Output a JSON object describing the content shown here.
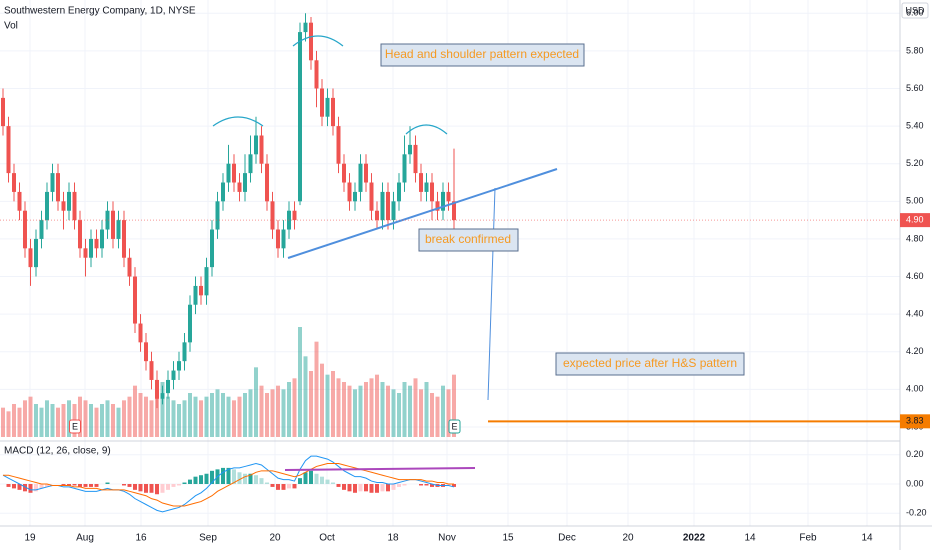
{
  "header": {
    "title": "Southwestern Energy Company, 1D, NYSE",
    "volume_label": "Vol",
    "currency": "USD"
  },
  "chart_data": {
    "type": "candlestick",
    "open": [
      5.55,
      5.4,
      5.15,
      5.05,
      4.95,
      4.75,
      4.65,
      4.8,
      4.9,
      5.05,
      5.15,
      5.0,
      4.95,
      5.05,
      4.9,
      4.75,
      4.7,
      4.8,
      4.75,
      4.85,
      4.95,
      4.8,
      4.9,
      4.7,
      4.6,
      4.35,
      4.25,
      4.15,
      4.05,
      3.95,
      3.98,
      4.05,
      4.1,
      4.15,
      4.25,
      4.45,
      4.55,
      4.5,
      4.65,
      4.85,
      5.0,
      5.1,
      5.2,
      5.1,
      5.05,
      5.15,
      5.25,
      5.35,
      5.2,
      5.0,
      4.85,
      4.75,
      4.85,
      4.95,
      5.0,
      5.9,
      5.95,
      5.75,
      5.6,
      5.45,
      5.55,
      5.4,
      5.2,
      5.1,
      5.0,
      5.05,
      5.2,
      5.1,
      4.95,
      4.9,
      5.05,
      4.9,
      5.0,
      5.1,
      5.25,
      5.3,
      5.15,
      5.05,
      5.1,
      5.0,
      4.95,
      5.05,
      5.0
    ],
    "high": [
      5.6,
      5.45,
      5.2,
      5.1,
      5.0,
      4.8,
      4.85,
      4.95,
      5.1,
      5.2,
      5.2,
      5.05,
      5.1,
      5.1,
      4.95,
      4.8,
      4.85,
      4.85,
      4.9,
      5.0,
      5.0,
      4.95,
      4.95,
      4.75,
      4.65,
      4.4,
      4.3,
      4.2,
      4.1,
      4.02,
      4.1,
      4.15,
      4.2,
      4.3,
      4.5,
      4.6,
      4.6,
      4.7,
      4.9,
      5.05,
      5.15,
      5.3,
      5.25,
      5.15,
      5.25,
      5.35,
      5.45,
      5.4,
      5.25,
      5.05,
      4.9,
      4.9,
      5.0,
      5.0,
      5.95,
      6.0,
      5.98,
      5.8,
      5.65,
      5.6,
      5.6,
      5.45,
      5.25,
      5.15,
      5.1,
      5.25,
      5.25,
      5.15,
      5.0,
      5.1,
      5.1,
      5.05,
      5.15,
      5.35,
      5.4,
      5.35,
      5.2,
      5.15,
      5.15,
      5.05,
      5.1,
      5.1,
      5.28
    ],
    "low": [
      5.35,
      5.1,
      5.0,
      4.9,
      4.7,
      4.55,
      4.6,
      4.75,
      4.85,
      5.0,
      4.95,
      4.85,
      4.9,
      4.85,
      4.7,
      4.6,
      4.65,
      4.7,
      4.7,
      4.8,
      4.75,
      4.75,
      4.65,
      4.55,
      4.3,
      4.2,
      4.1,
      4.0,
      3.9,
      3.92,
      3.95,
      4.0,
      4.05,
      4.1,
      4.2,
      4.4,
      4.45,
      4.45,
      4.6,
      4.8,
      4.95,
      5.05,
      5.05,
      5.0,
      5.0,
      5.1,
      5.2,
      5.15,
      4.95,
      4.8,
      4.7,
      4.7,
      4.8,
      4.85,
      4.98,
      5.85,
      5.7,
      5.5,
      5.4,
      5.4,
      5.35,
      5.15,
      5.05,
      4.95,
      4.95,
      5.0,
      5.05,
      4.9,
      4.85,
      4.85,
      4.85,
      4.85,
      4.95,
      5.05,
      5.2,
      5.1,
      5.0,
      5.0,
      4.9,
      4.9,
      4.9,
      4.95,
      4.85
    ],
    "close": [
      5.4,
      5.15,
      5.05,
      4.95,
      4.75,
      4.65,
      4.8,
      4.9,
      5.05,
      5.15,
      5.0,
      4.95,
      5.05,
      4.9,
      4.75,
      4.7,
      4.8,
      4.75,
      4.85,
      4.95,
      4.8,
      4.9,
      4.7,
      4.6,
      4.35,
      4.25,
      4.15,
      4.05,
      3.95,
      3.98,
      4.05,
      4.1,
      4.15,
      4.25,
      4.45,
      4.55,
      4.5,
      4.65,
      4.85,
      5.0,
      5.1,
      5.2,
      5.1,
      5.05,
      5.15,
      5.25,
      5.35,
      5.2,
      5.0,
      4.85,
      4.75,
      4.85,
      4.95,
      4.9,
      5.9,
      5.95,
      5.75,
      5.6,
      5.45,
      5.55,
      5.4,
      5.2,
      5.1,
      5.0,
      5.05,
      5.2,
      5.1,
      4.95,
      4.9,
      5.05,
      4.9,
      5.0,
      5.1,
      5.25,
      5.3,
      5.15,
      5.05,
      5.1,
      5.0,
      4.95,
      5.05,
      5.0,
      4.9
    ],
    "volume": [
      8,
      7,
      9,
      8,
      10,
      11,
      9,
      8,
      10,
      9,
      8,
      9,
      10,
      9,
      11,
      10,
      9,
      8,
      9,
      10,
      9,
      8,
      10,
      11,
      14,
      12,
      11,
      10,
      13,
      15,
      11,
      10,
      9,
      10,
      12,
      11,
      10,
      11,
      12,
      13,
      12,
      11,
      10,
      11,
      12,
      13,
      19,
      14,
      12,
      13,
      14,
      13,
      15,
      16,
      30,
      22,
      18,
      26,
      20,
      17,
      18,
      16,
      15,
      14,
      13,
      14,
      15,
      16,
      17,
      15,
      14,
      13,
      12,
      15,
      14,
      16,
      13,
      15,
      12,
      11,
      14,
      13,
      17
    ],
    "ylim": [
      3.72,
      6.06
    ],
    "yticks": [
      {
        "value": 3.8,
        "label": "3.80"
      },
      {
        "value": 4.0,
        "label": "4.00"
      },
      {
        "value": 4.2,
        "label": "4.20"
      },
      {
        "value": 4.4,
        "label": "4.40"
      },
      {
        "value": 4.6,
        "label": "4.60"
      },
      {
        "value": 4.8,
        "label": "4.80"
      },
      {
        "value": 5.0,
        "label": "5.00"
      },
      {
        "value": 5.2,
        "label": "5.20"
      },
      {
        "value": 5.4,
        "label": "5.40"
      },
      {
        "value": 5.6,
        "label": "5.60"
      },
      {
        "value": 5.8,
        "label": "5.80"
      },
      {
        "value": 6.0,
        "label": "6.00"
      }
    ],
    "last_price": {
      "value": 4.9,
      "label": "4.90"
    },
    "target_price": {
      "value": 3.83,
      "label": "3.83"
    },
    "earnings_marker": "E",
    "x_labels": [
      "19",
      "Aug",
      "16",
      "Sep",
      "20",
      "Oct",
      "18",
      "Nov",
      "15",
      "Dec",
      "20",
      "2022",
      "14",
      "Feb",
      "14"
    ],
    "annotations": [
      "Head and shoulder pattern expected",
      "break confirmed",
      "expected price after H&S pattern"
    ],
    "macd": {
      "title": "MACD (12, 26, close, 9)",
      "macd": [
        0.06,
        0.04,
        0.02,
        0.0,
        -0.02,
        -0.04,
        -0.04,
        -0.03,
        -0.02,
        -0.01,
        -0.01,
        -0.02,
        -0.02,
        -0.03,
        -0.04,
        -0.05,
        -0.05,
        -0.05,
        -0.04,
        -0.03,
        -0.04,
        -0.04,
        -0.05,
        -0.07,
        -0.1,
        -0.12,
        -0.14,
        -0.16,
        -0.18,
        -0.19,
        -0.18,
        -0.17,
        -0.16,
        -0.14,
        -0.11,
        -0.08,
        -0.06,
        -0.03,
        0.01,
        0.05,
        0.08,
        0.1,
        0.11,
        0.11,
        0.12,
        0.13,
        0.14,
        0.13,
        0.1,
        0.07,
        0.04,
        0.03,
        0.03,
        0.02,
        0.1,
        0.16,
        0.19,
        0.19,
        0.18,
        0.17,
        0.15,
        0.12,
        0.09,
        0.07,
        0.05,
        0.05,
        0.04,
        0.02,
        0.01,
        0.01,
        0.0,
        0.0,
        0.01,
        0.02,
        0.03,
        0.03,
        0.02,
        0.01,
        0.0,
        -0.01,
        -0.01,
        -0.01,
        -0.02
      ],
      "signal": [
        0.06,
        0.06,
        0.05,
        0.04,
        0.03,
        0.02,
        0.01,
        0.0,
        0.0,
        -0.01,
        -0.01,
        -0.01,
        -0.01,
        -0.02,
        -0.02,
        -0.03,
        -0.03,
        -0.03,
        -0.04,
        -0.04,
        -0.04,
        -0.04,
        -0.04,
        -0.05,
        -0.06,
        -0.07,
        -0.08,
        -0.1,
        -0.11,
        -0.13,
        -0.14,
        -0.15,
        -0.15,
        -0.15,
        -0.14,
        -0.13,
        -0.12,
        -0.1,
        -0.08,
        -0.05,
        -0.03,
        -0.01,
        0.01,
        0.03,
        0.05,
        0.06,
        0.08,
        0.09,
        0.09,
        0.09,
        0.08,
        0.07,
        0.06,
        0.05,
        0.06,
        0.08,
        0.1,
        0.12,
        0.13,
        0.14,
        0.14,
        0.14,
        0.13,
        0.12,
        0.11,
        0.1,
        0.09,
        0.08,
        0.07,
        0.06,
        0.05,
        0.04,
        0.03,
        0.03,
        0.03,
        0.03,
        0.03,
        0.02,
        0.02,
        0.01,
        0.01,
        0.0,
        0.0
      ],
      "histogram": [
        0,
        -0.02,
        -0.03,
        -0.04,
        -0.05,
        -0.06,
        -0.05,
        -0.03,
        -0.02,
        0,
        0,
        -0.01,
        -0.01,
        -0.01,
        -0.02,
        -0.02,
        -0.02,
        -0.02,
        0,
        0.01,
        0,
        0,
        -0.01,
        -0.02,
        -0.04,
        -0.05,
        -0.06,
        -0.06,
        -0.07,
        -0.06,
        -0.04,
        -0.02,
        -0.01,
        0.01,
        0.03,
        0.05,
        0.06,
        0.07,
        0.09,
        0.1,
        0.11,
        0.11,
        0.1,
        0.08,
        0.07,
        0.07,
        0.06,
        0.04,
        0.01,
        -0.02,
        -0.04,
        -0.04,
        -0.03,
        -0.03,
        0.04,
        0.08,
        0.09,
        0.07,
        0.05,
        0.03,
        0.01,
        -0.02,
        -0.04,
        -0.05,
        -0.06,
        -0.05,
        -0.05,
        -0.06,
        -0.06,
        -0.05,
        -0.05,
        -0.04,
        -0.02,
        -0.01,
        0,
        0,
        -0.01,
        -0.01,
        -0.02,
        -0.02,
        -0.02,
        -0.01,
        -0.02
      ],
      "ylim": [
        -0.28,
        0.28
      ],
      "yticks": [
        {
          "value": -0.2,
          "label": "-0.20"
        },
        {
          "value": 0,
          "label": "0.00"
        },
        {
          "value": 0.2,
          "label": "0.20"
        }
      ]
    }
  }
}
